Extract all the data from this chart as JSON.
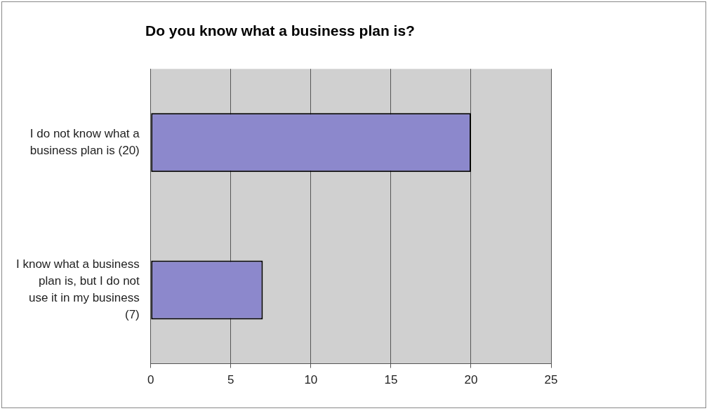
{
  "chart_data": {
    "type": "bar",
    "orientation": "horizontal",
    "title": "Do you know what a business plan is?",
    "categories": [
      "I do not know what a business plan is (20)",
      "I know what a business plan is, but I do not use it in my business (7)"
    ],
    "values": [
      20,
      7
    ],
    "color": "#8c88cc",
    "xlim": [
      0,
      25
    ],
    "xticks": [
      0,
      5,
      10,
      15,
      20,
      25
    ],
    "grid": "x"
  }
}
